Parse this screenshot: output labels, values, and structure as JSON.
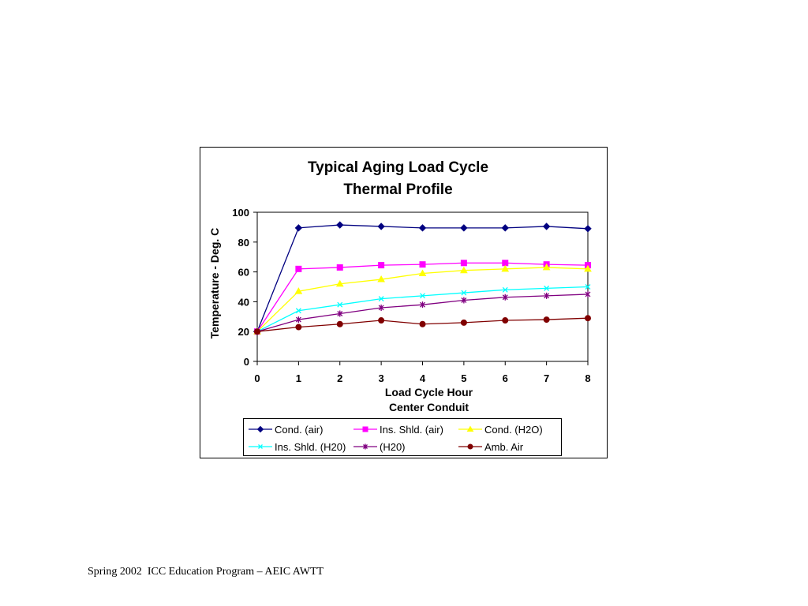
{
  "footer": "Spring 2002  ICC Education Program – AEIC AWTT",
  "chart_data": {
    "type": "line",
    "title_lines": [
      "Typical Aging Load Cycle",
      "Thermal Profile"
    ],
    "xlabel_lines": [
      "Load Cycle Hour",
      "Center Conduit"
    ],
    "ylabel": "Temperature - Deg. C",
    "x": [
      0,
      1,
      2,
      3,
      4,
      5,
      6,
      7,
      8
    ],
    "xlim": [
      0,
      8
    ],
    "ylim": [
      0,
      100
    ],
    "yticks": [
      0,
      20,
      40,
      60,
      80,
      100
    ],
    "grid": false,
    "legend_position": "bottom",
    "series": [
      {
        "name": "Cond. (air)",
        "color": "#000080",
        "marker": "diamond",
        "values": [
          20,
          89.5,
          91.5,
          90.5,
          89.5,
          89.5,
          89.5,
          90.5,
          89
        ]
      },
      {
        "name": "Ins. Shld. (air)",
        "color": "#ff00ff",
        "marker": "square",
        "values": [
          20,
          62,
          63,
          64.5,
          65,
          66,
          66,
          65,
          64.5
        ]
      },
      {
        "name": "Cond. (H2O)",
        "color": "#ffff00",
        "marker": "triangle",
        "values": [
          20,
          47,
          52,
          55,
          59,
          61,
          62,
          63,
          62
        ]
      },
      {
        "name": "Ins. Shld. (H20)",
        "color": "#00ffff",
        "marker": "x",
        "values": [
          20,
          34,
          38,
          42,
          44,
          46,
          48,
          49,
          50
        ]
      },
      {
        "name": "(H20)",
        "color": "#800080",
        "marker": "star",
        "values": [
          20,
          28,
          32,
          36,
          38,
          41,
          43,
          44,
          45
        ]
      },
      {
        "name": "Amb. Air",
        "color": "#800000",
        "marker": "circle",
        "values": [
          20,
          23,
          25,
          27.5,
          25,
          26,
          27.5,
          28,
          29
        ]
      }
    ]
  }
}
